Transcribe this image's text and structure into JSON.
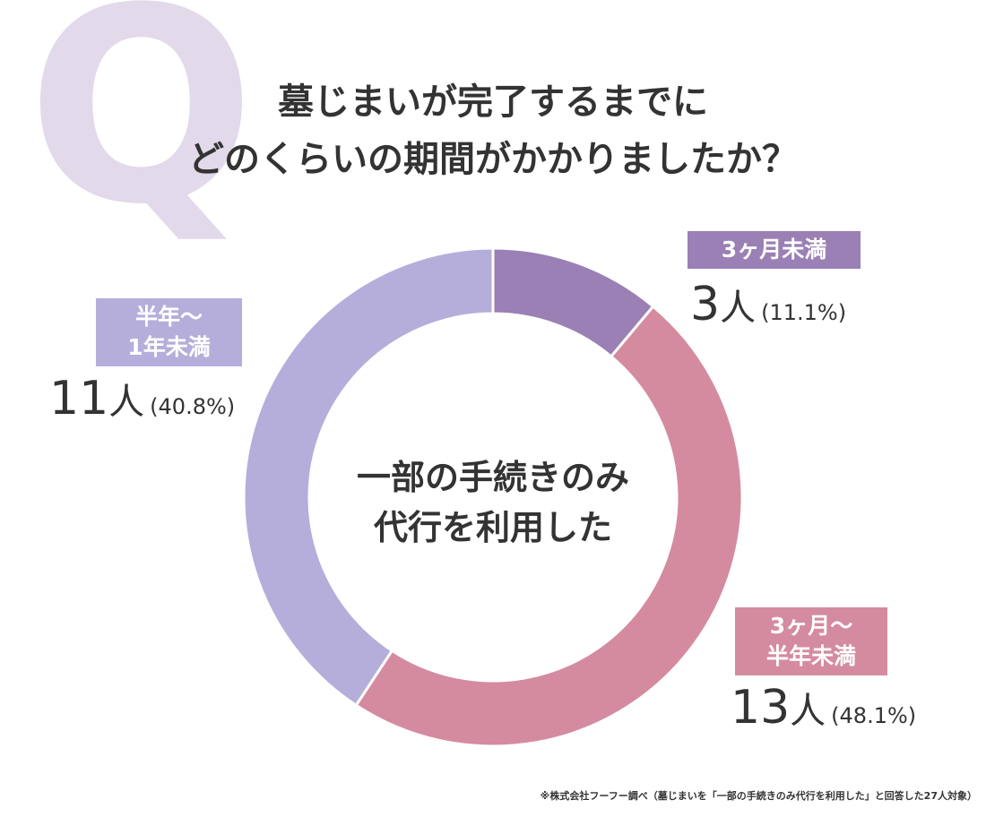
{
  "chart_data": {
    "type": "donut",
    "badge": "Q",
    "title": "墓じまいが完了するまでに\nどのくらいの期間がかかりましたか？",
    "center_text": "一部の手続きのみ\n代行を利用した",
    "categories": [
      "3ヶ月未満",
      "3ヶ月～\n半年未満",
      "半年～\n1年未満"
    ],
    "values": [
      3,
      13,
      11
    ],
    "unit": "人",
    "percent_labels": [
      "(11.1%)",
      "(48.1%)",
      "(40.8%)"
    ],
    "colors": [
      "#9a80b4",
      "#d48ba0",
      "#b5aedb"
    ],
    "footnote": "※株式会社フーフー調べ（墓じまいを「一部の手続きのみ代行を利用した」と回答した27人対象）"
  }
}
